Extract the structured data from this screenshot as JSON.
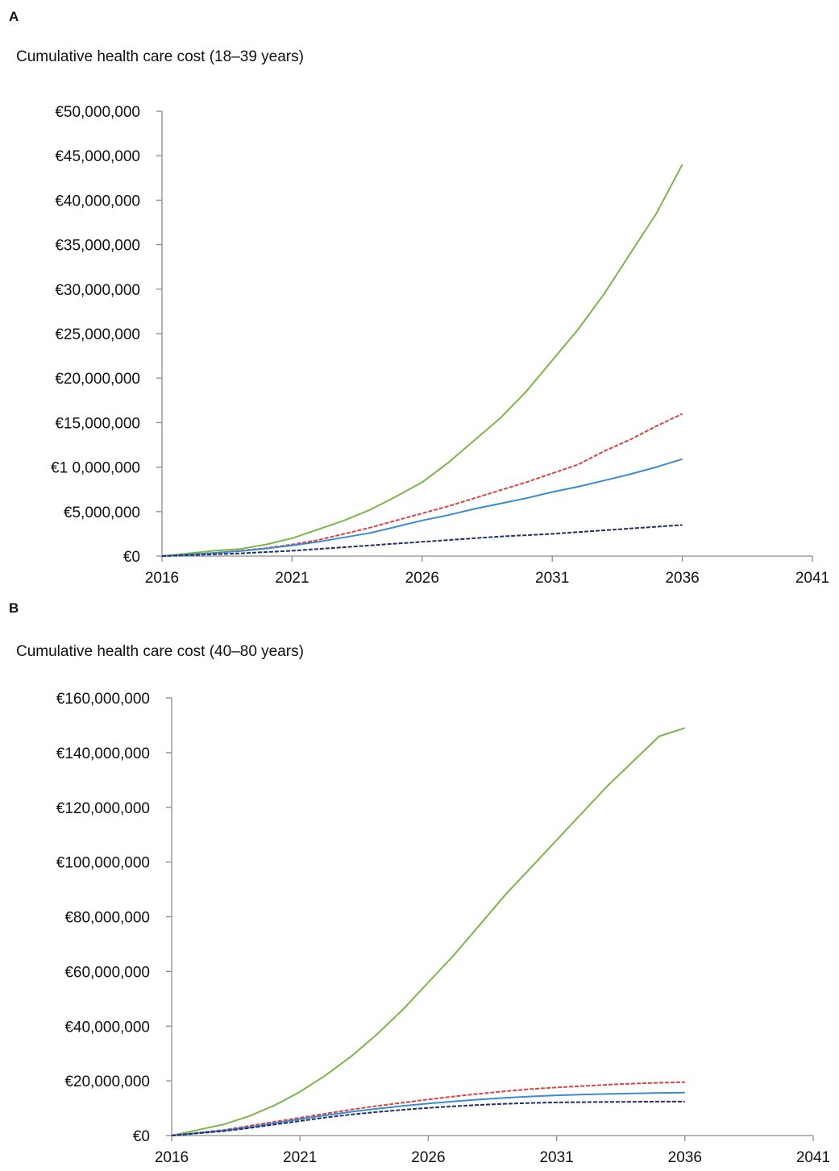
{
  "chart_data": [
    {
      "type": "line",
      "panel": "A",
      "title": "Cumulative health care cost (18–39 years)",
      "x_ticks": [
        "2016",
        "2021",
        "2026",
        "2031",
        "2036",
        "2041"
      ],
      "xlim": [
        2016,
        2041
      ],
      "y_ticks": [
        "€0",
        "€5,000,000",
        "€1 0,000,000",
        "€15,000,000",
        "€20,000,000",
        "€25,000,000",
        "€30,000,000",
        "€35,000,000",
        "€40,000,000",
        "€45,000,000",
        "€50,000,000"
      ],
      "ylim": [
        0,
        50000000
      ],
      "grid": false,
      "legend": "none",
      "x": [
        2016,
        2017,
        2018,
        2019,
        2020,
        2021,
        2022,
        2023,
        2024,
        2025,
        2026,
        2027,
        2028,
        2029,
        2030,
        2031,
        2032,
        2033,
        2034,
        2035,
        2036
      ],
      "series": [
        {
          "color": "#7ab648",
          "dashed": false,
          "values": [
            0,
            300000,
            600000,
            800000,
            1300000,
            2000000,
            3000000,
            4000000,
            5200000,
            6700000,
            8300000,
            10500000,
            13000000,
            15500000,
            18500000,
            22000000,
            25500000,
            29500000,
            34000000,
            38500000,
            44000000
          ]
        },
        {
          "color": "#e0403d",
          "dashed": true,
          "values": [
            0,
            150000,
            350000,
            600000,
            900000,
            1300000,
            1800000,
            2500000,
            3200000,
            4000000,
            4800000,
            5600000,
            6500000,
            7400000,
            8300000,
            9300000,
            10300000,
            11800000,
            13100000,
            14600000,
            16000000
          ]
        },
        {
          "color": "#3b8bd0",
          "dashed": false,
          "values": [
            0,
            150000,
            350000,
            550000,
            850000,
            1200000,
            1600000,
            2100000,
            2600000,
            3300000,
            4000000,
            4600000,
            5300000,
            5900000,
            6500000,
            7200000,
            7800000,
            8500000,
            9200000,
            10000000,
            10900000
          ]
        },
        {
          "color": "#1f2f6b",
          "dashed": true,
          "values": [
            0,
            100000,
            200000,
            300000,
            450000,
            600000,
            800000,
            1000000,
            1200000,
            1400000,
            1600000,
            1800000,
            2000000,
            2200000,
            2350000,
            2500000,
            2700000,
            2900000,
            3100000,
            3300000,
            3500000
          ]
        }
      ]
    },
    {
      "type": "line",
      "panel": "B",
      "title": "Cumulative health care cost (40–80 years)",
      "x_ticks": [
        "2016",
        "2021",
        "2026",
        "2031",
        "2036",
        "2041"
      ],
      "xlim": [
        2016,
        2041
      ],
      "y_ticks": [
        "€0",
        "€20,000,000",
        "€40,000,000",
        "€60,000,000",
        "€80,000,000",
        "€100,000,000",
        "€120,000,000",
        "€140,000,000",
        "€160,000,000"
      ],
      "ylim": [
        0,
        160000000
      ],
      "grid": false,
      "legend": "none",
      "x": [
        2016,
        2017,
        2018,
        2019,
        2020,
        2021,
        2022,
        2023,
        2024,
        2025,
        2026,
        2027,
        2028,
        2029,
        2030,
        2031,
        2032,
        2033,
        2034,
        2035,
        2036
      ],
      "series": [
        {
          "color": "#7ab648",
          "dashed": false,
          "values": [
            0,
            2000000,
            4000000,
            7000000,
            11000000,
            16000000,
            22000000,
            29000000,
            37000000,
            46000000,
            56000000,
            66000000,
            77000000,
            88000000,
            98000000,
            108000000,
            118000000,
            128000000,
            137000000,
            146000000,
            149000000
          ]
        },
        {
          "color": "#e0403d",
          "dashed": true,
          "values": [
            0,
            1000000,
            2000000,
            3500000,
            5000000,
            6500000,
            8000000,
            9500000,
            10800000,
            12000000,
            13200000,
            14300000,
            15300000,
            16200000,
            17000000,
            17600000,
            18100000,
            18600000,
            19000000,
            19300000,
            19500000
          ]
        },
        {
          "color": "#3b8bd0",
          "dashed": false,
          "values": [
            0,
            900000,
            1800000,
            3000000,
            4500000,
            6000000,
            7400000,
            8700000,
            9800000,
            10800000,
            11700000,
            12500000,
            13200000,
            13800000,
            14300000,
            14700000,
            15000000,
            15200000,
            15400000,
            15600000,
            15700000
          ]
        },
        {
          "color": "#1f2f6b",
          "dashed": true,
          "values": [
            0,
            800000,
            1600000,
            2700000,
            4000000,
            5300000,
            6600000,
            7700000,
            8600000,
            9400000,
            10100000,
            10700000,
            11200000,
            11600000,
            11900000,
            12100000,
            12200000,
            12300000,
            12350000,
            12400000,
            12400000
          ]
        }
      ]
    }
  ]
}
